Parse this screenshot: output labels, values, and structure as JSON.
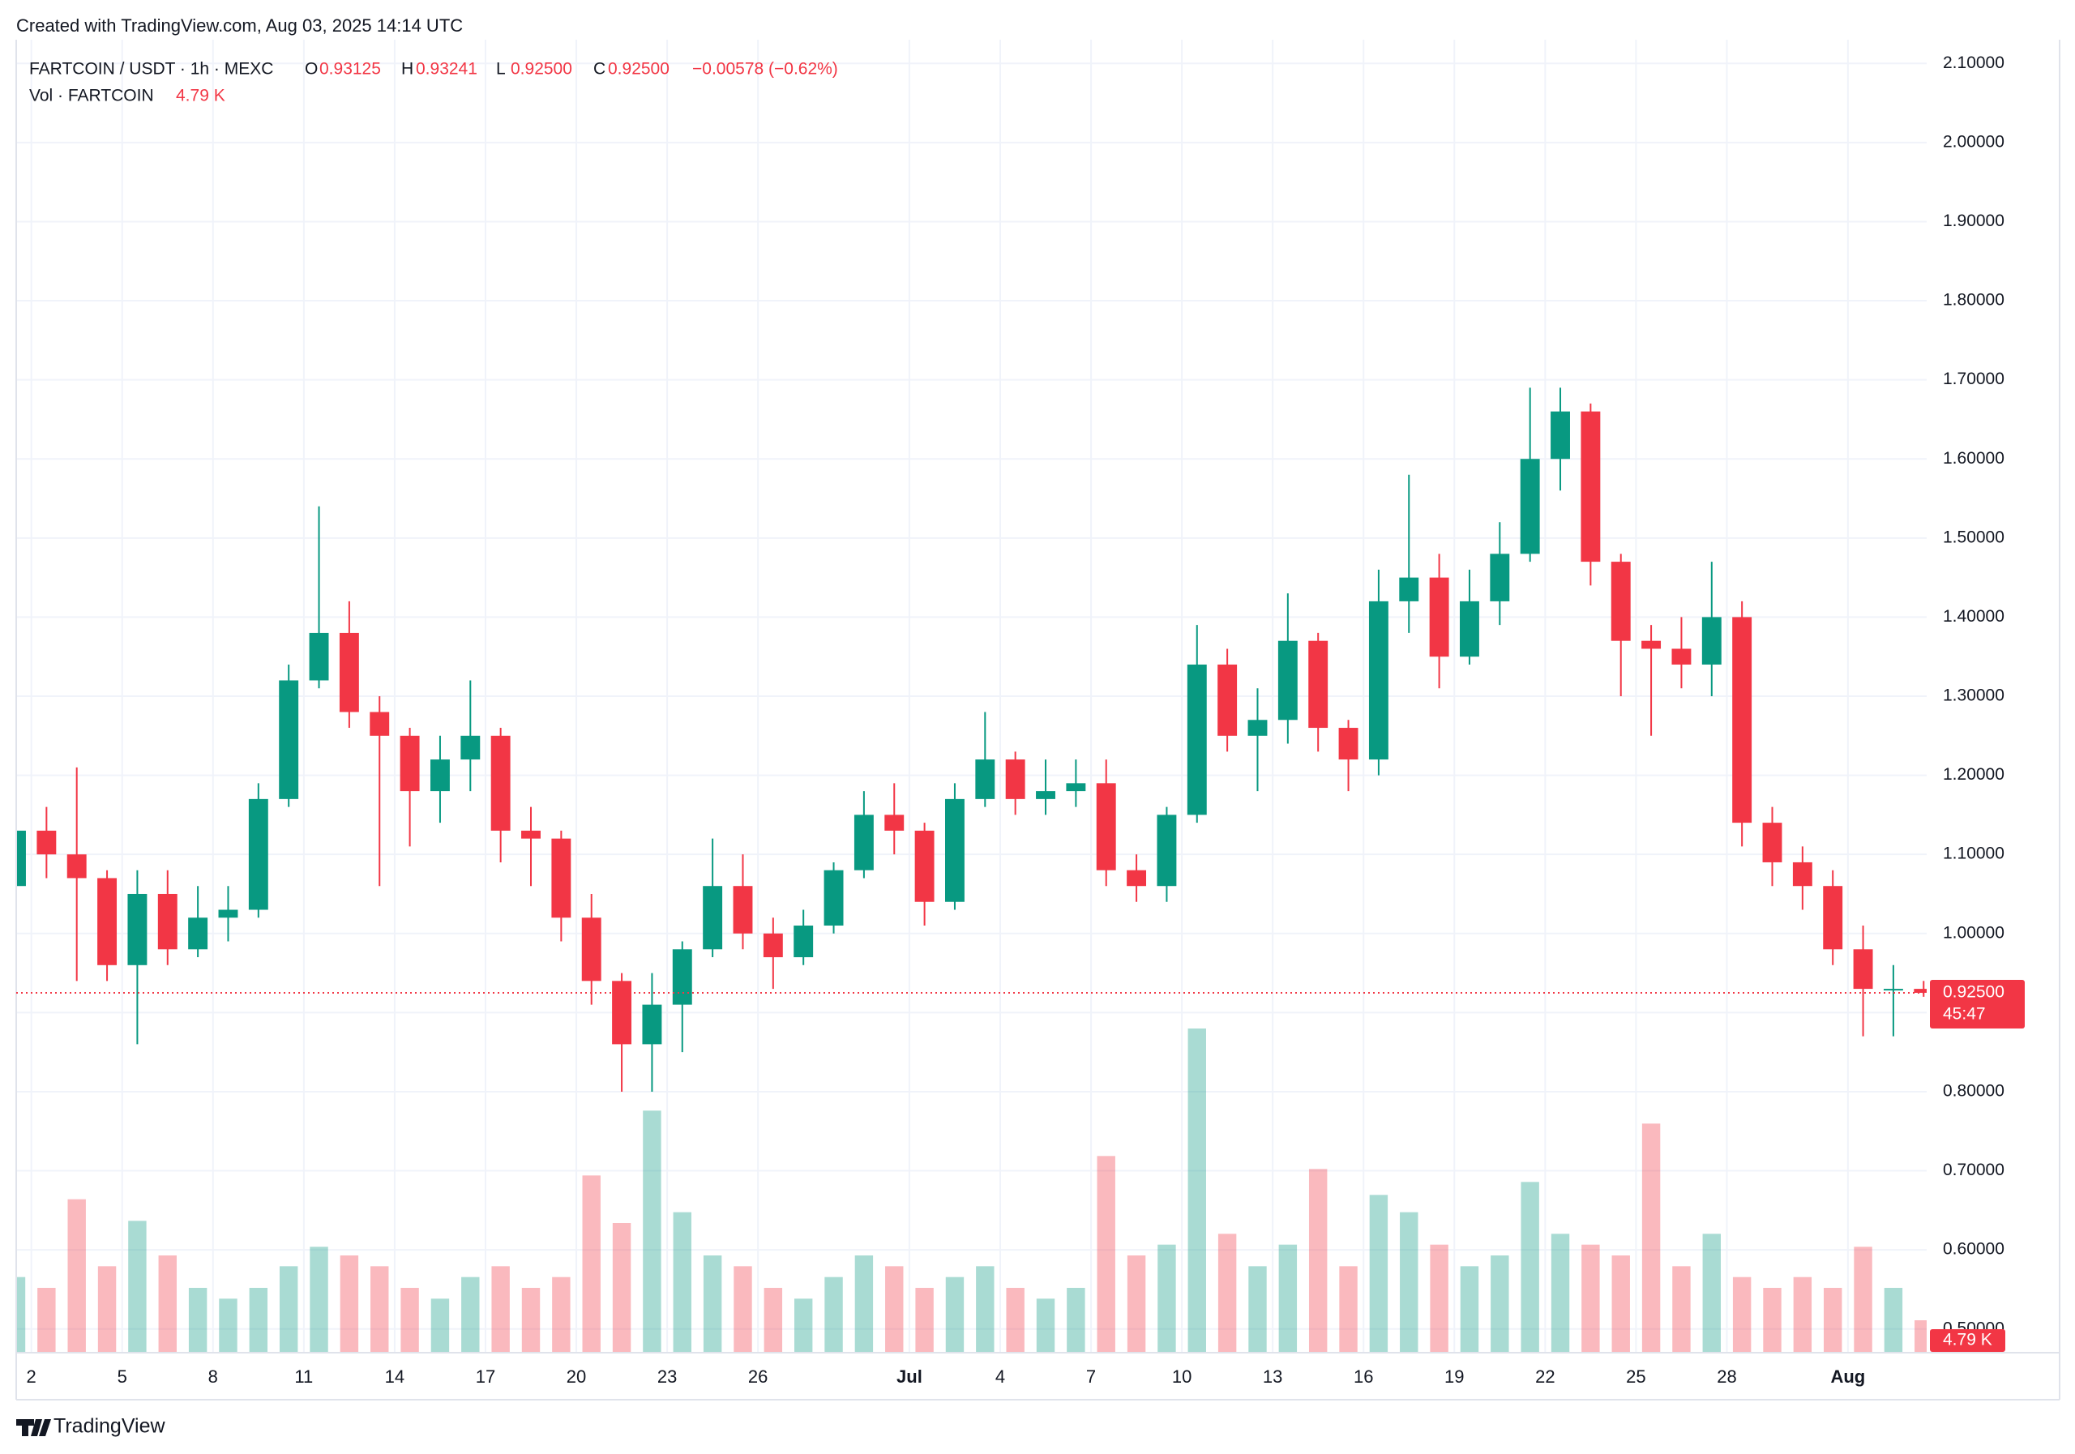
{
  "header": {
    "created": "Created with TradingView.com, Aug 03, 2025 14:14 UTC",
    "symbol": "FARTCOIN / USDT · 1h · MEXC",
    "ohlc": [
      {
        "key": "O",
        "value": "0.93125"
      },
      {
        "key": "H",
        "value": "0.93241"
      },
      {
        "key": "L",
        "value": "0.92500"
      },
      {
        "key": "C",
        "value": "0.92500"
      }
    ],
    "change": "−0.00578 (−0.62%)",
    "volume_label": "Vol · FARTCOIN",
    "volume_value": "4.79 K"
  },
  "logo": "TradingView",
  "chart_data": {
    "type": "candlestick",
    "x": [
      1,
      2,
      3,
      4,
      5,
      6,
      7,
      8,
      9,
      10,
      11,
      12,
      13,
      14,
      15,
      16,
      17,
      18,
      19,
      20,
      21,
      22,
      23,
      24,
      25,
      26,
      27,
      28,
      29,
      30,
      31,
      32,
      33,
      34,
      35,
      36,
      37,
      38,
      39,
      40,
      41,
      42,
      43,
      44,
      45,
      46,
      47,
      48,
      49,
      50,
      51,
      52,
      53,
      54,
      55,
      56,
      57,
      58,
      59,
      60,
      61,
      62,
      63,
      64
    ],
    "open": [
      1.06,
      1.13,
      1.1,
      1.07,
      0.96,
      1.05,
      0.98,
      1.02,
      1.03,
      1.17,
      1.32,
      1.38,
      1.28,
      1.25,
      1.18,
      1.22,
      1.25,
      1.13,
      1.12,
      1.02,
      0.94,
      0.86,
      0.91,
      0.98,
      1.06,
      1.0,
      0.97,
      1.01,
      1.08,
      1.15,
      1.13,
      1.04,
      1.17,
      1.22,
      1.17,
      1.18,
      1.19,
      1.08,
      1.06,
      1.15,
      1.34,
      1.25,
      1.27,
      1.37,
      1.26,
      1.22,
      1.42,
      1.45,
      1.35,
      1.42,
      1.48,
      1.6,
      1.66,
      1.47,
      1.37,
      1.36,
      1.34,
      1.4,
      1.14,
      1.09,
      1.06,
      0.98,
      0.93,
      0.93
    ],
    "high": [
      1.17,
      1.16,
      1.21,
      1.08,
      1.08,
      1.08,
      1.06,
      1.06,
      1.19,
      1.34,
      1.54,
      1.42,
      1.3,
      1.26,
      1.25,
      1.32,
      1.26,
      1.16,
      1.13,
      1.05,
      0.95,
      0.95,
      0.99,
      1.12,
      1.1,
      1.02,
      1.03,
      1.09,
      1.18,
      1.19,
      1.14,
      1.19,
      1.28,
      1.23,
      1.22,
      1.22,
      1.22,
      1.1,
      1.16,
      1.39,
      1.36,
      1.31,
      1.43,
      1.38,
      1.27,
      1.46,
      1.58,
      1.48,
      1.46,
      1.52,
      1.69,
      1.69,
      1.67,
      1.48,
      1.39,
      1.4,
      1.47,
      1.42,
      1.16,
      1.11,
      1.08,
      1.01,
      0.96,
      0.94
    ],
    "low": [
      1.05,
      1.07,
      0.94,
      0.94,
      0.86,
      0.96,
      0.97,
      0.99,
      1.02,
      1.16,
      1.31,
      1.26,
      1.06,
      1.11,
      1.14,
      1.18,
      1.09,
      1.06,
      0.99,
      0.91,
      0.8,
      0.8,
      0.85,
      0.97,
      0.98,
      0.93,
      0.96,
      1.0,
      1.07,
      1.1,
      1.01,
      1.03,
      1.16,
      1.15,
      1.15,
      1.16,
      1.06,
      1.04,
      1.04,
      1.14,
      1.23,
      1.18,
      1.24,
      1.23,
      1.18,
      1.2,
      1.38,
      1.31,
      1.34,
      1.39,
      1.47,
      1.56,
      1.44,
      1.3,
      1.25,
      1.31,
      1.3,
      1.11,
      1.06,
      1.03,
      0.96,
      0.87,
      0.87,
      0.92
    ],
    "close": [
      1.13,
      1.1,
      1.07,
      0.96,
      1.05,
      0.98,
      1.02,
      1.03,
      1.17,
      1.32,
      1.38,
      1.28,
      1.25,
      1.18,
      1.22,
      1.25,
      1.13,
      1.12,
      1.02,
      0.94,
      0.86,
      0.91,
      0.98,
      1.06,
      1.0,
      0.97,
      1.01,
      1.08,
      1.15,
      1.13,
      1.04,
      1.17,
      1.22,
      1.17,
      1.18,
      1.19,
      1.08,
      1.06,
      1.15,
      1.34,
      1.25,
      1.27,
      1.37,
      1.26,
      1.22,
      1.42,
      1.45,
      1.35,
      1.42,
      1.48,
      1.6,
      1.66,
      1.47,
      1.37,
      1.36,
      1.34,
      1.4,
      1.14,
      1.09,
      1.06,
      0.98,
      0.93,
      0.93,
      0.925
    ],
    "volumes": [
      35,
      30,
      71,
      40,
      61,
      45,
      30,
      25,
      30,
      40,
      49,
      45,
      40,
      30,
      25,
      35,
      40,
      30,
      35,
      82,
      60,
      112,
      65,
      45,
      40,
      30,
      25,
      35,
      45,
      40,
      30,
      35,
      40,
      30,
      25,
      30,
      91,
      45,
      50,
      150,
      55,
      40,
      50,
      85,
      40,
      73,
      65,
      50,
      40,
      45,
      79,
      55,
      50,
      45,
      106,
      40,
      55,
      35,
      30,
      35,
      30,
      49,
      30,
      15
    ],
    "up_color": "#089981",
    "down_color": "#f23645",
    "xlim": [
      1.5,
      64.6
    ],
    "xticks": [
      2,
      5,
      8,
      11,
      14,
      17,
      20,
      23,
      26,
      {
        "value": 31,
        "label": "Jul"
      },
      {
        "value": 34,
        "label": "4"
      },
      {
        "value": 37,
        "label": "7"
      },
      {
        "value": 40,
        "label": "10"
      },
      {
        "value": 43,
        "label": "13"
      },
      {
        "value": 46,
        "label": "16"
      },
      {
        "value": 49,
        "label": "19"
      },
      {
        "value": 52,
        "label": "22"
      },
      {
        "value": 55,
        "label": "25"
      },
      {
        "value": 58,
        "label": "28"
      },
      {
        "value": 62,
        "label": "Aug"
      }
    ],
    "ylim": [
      0.47,
      2.13
    ],
    "yticks": [
      {
        "value": 0.5,
        "label": "0.50000"
      },
      {
        "value": 0.6,
        "label": "0.60000"
      },
      {
        "value": 0.7,
        "label": "0.70000"
      },
      {
        "value": 0.8,
        "label": "0.80000"
      },
      {
        "value": 0.9,
        "label": "0.90000"
      },
      {
        "value": 1.0,
        "label": "1.00000"
      },
      {
        "value": 1.1,
        "label": "1.10000"
      },
      {
        "value": 1.2,
        "label": "1.20000"
      },
      {
        "value": 1.3,
        "label": "1.30000"
      },
      {
        "value": 1.4,
        "label": "1.40000"
      },
      {
        "value": 1.5,
        "label": "1.50000"
      },
      {
        "value": 1.6,
        "label": "1.60000"
      },
      {
        "value": 1.7,
        "label": "1.70000"
      },
      {
        "value": 1.8,
        "label": "1.80000"
      },
      {
        "value": 1.9,
        "label": "1.90000"
      },
      {
        "value": 2.0,
        "label": "2.00000"
      },
      {
        "value": 2.1,
        "label": "2.10000"
      }
    ],
    "vlim": [
      0,
      150
    ],
    "last_price": {
      "value": 0.925,
      "label": "0.92500"
    },
    "countdown": "45:47",
    "last_volume_label": "4.79 K",
    "grid": true
  }
}
